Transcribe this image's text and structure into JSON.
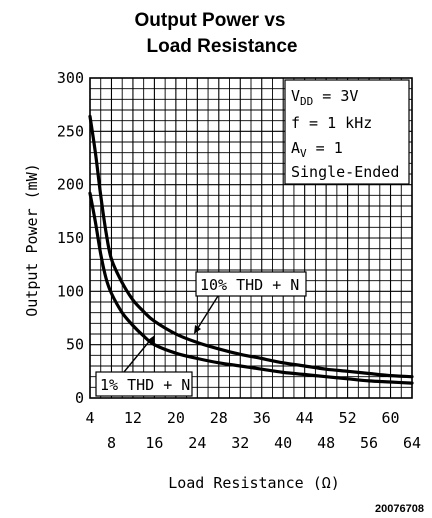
{
  "chart_data": {
    "type": "line",
    "title_line1": "Output Power vs",
    "title_line2": "Load Resistance",
    "xlabel": "Load Resistance (Ω)",
    "ylabel": "Output Power (mW)",
    "xlim": [
      4,
      64
    ],
    "ylim": [
      0,
      300
    ],
    "x_ticks_top_row": [
      "4",
      "12",
      "20",
      "28",
      "36",
      "44",
      "52",
      "60"
    ],
    "x_ticks_bottom_row": [
      "8",
      "16",
      "24",
      "32",
      "40",
      "48",
      "56",
      "64"
    ],
    "y_ticks": [
      "0",
      "50",
      "100",
      "150",
      "200",
      "250",
      "300"
    ],
    "grid": true,
    "series": [
      {
        "name": "10% THD + N",
        "x": [
          4,
          5,
          6,
          7,
          8,
          10,
          12,
          14,
          16,
          20,
          24,
          28,
          32,
          36,
          40,
          44,
          48,
          52,
          56,
          60,
          64
        ],
        "y": [
          264,
          230,
          190,
          155,
          130,
          108,
          92,
          81,
          72,
          60,
          52,
          46,
          41,
          37,
          33,
          30,
          27,
          25,
          23,
          21,
          20
        ]
      },
      {
        "name": "1% THD + N",
        "x": [
          4,
          5,
          6,
          7,
          8,
          10,
          12,
          14,
          16,
          20,
          24,
          28,
          32,
          36,
          40,
          44,
          48,
          52,
          56,
          60,
          64
        ],
        "y": [
          192,
          165,
          135,
          112,
          98,
          80,
          68,
          58,
          50,
          42,
          37,
          33,
          30,
          27,
          24,
          22,
          20,
          18,
          16,
          15,
          14
        ]
      }
    ],
    "annotations": {
      "conditions": {
        "vdd_main": "V",
        "vdd_sub": "DD",
        "vdd_value": " = 3V",
        "freq": "f = 1 kHz",
        "av_main": "A",
        "av_sub": "V",
        "av_value": " = 1",
        "mode": "Single-Ended"
      },
      "label_10pct": "10% THD + N",
      "label_1pct": "1% THD + N"
    },
    "figure_id": "20076708"
  },
  "colors": {
    "line": "#000000",
    "grid": "#000000",
    "background": "#ffffff"
  }
}
